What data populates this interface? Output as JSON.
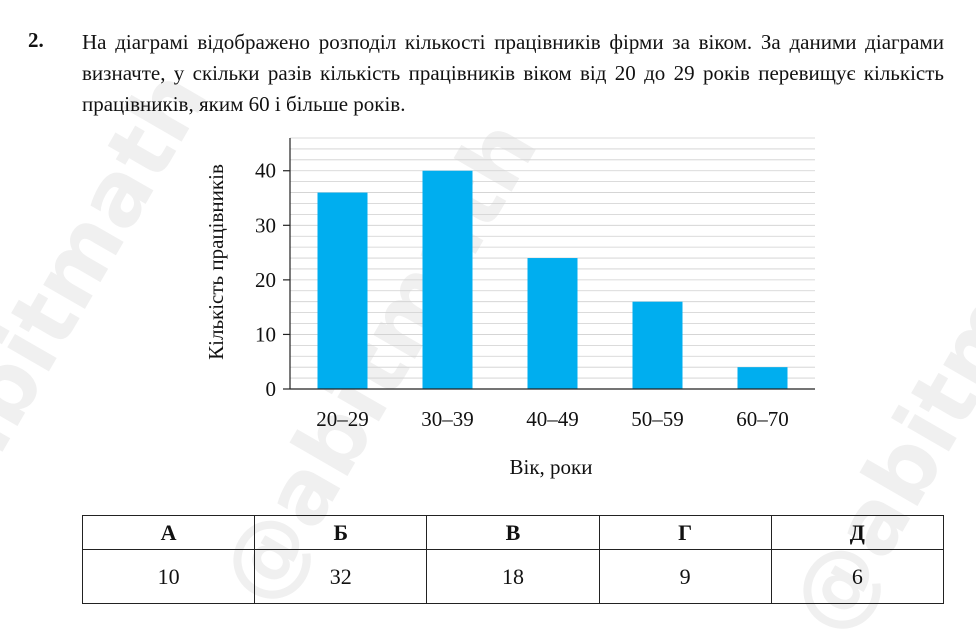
{
  "question": {
    "number": "2.",
    "text": "На діаграмі відображено розподіл кількості працівників фірми за віком. За даними діаграми визначте, у скільки разів кількість працівників віком від 20 до 29 років перевищує кількість працівників, яким 60 і більше років."
  },
  "watermark": {
    "text": "@abitmath",
    "color": "#f0f0f0"
  },
  "chart_data": {
    "type": "bar",
    "categories": [
      "20–29",
      "30–39",
      "40–49",
      "50–59",
      "60–70"
    ],
    "values": [
      36,
      40,
      24,
      16,
      4
    ],
    "xlabel": "Вік, роки",
    "ylabel": "Кількість працівників",
    "ylim": [
      0,
      46
    ],
    "yticks": [
      0,
      10,
      20,
      30,
      40
    ],
    "minor_grid_step": 2,
    "grid": true,
    "bar_color": "#00aeef",
    "grid_color": "#cfcfcf"
  },
  "answers": {
    "letters": [
      "А",
      "Б",
      "В",
      "Г",
      "Д"
    ],
    "values": [
      "10",
      "32",
      "18",
      "9",
      "6"
    ]
  }
}
